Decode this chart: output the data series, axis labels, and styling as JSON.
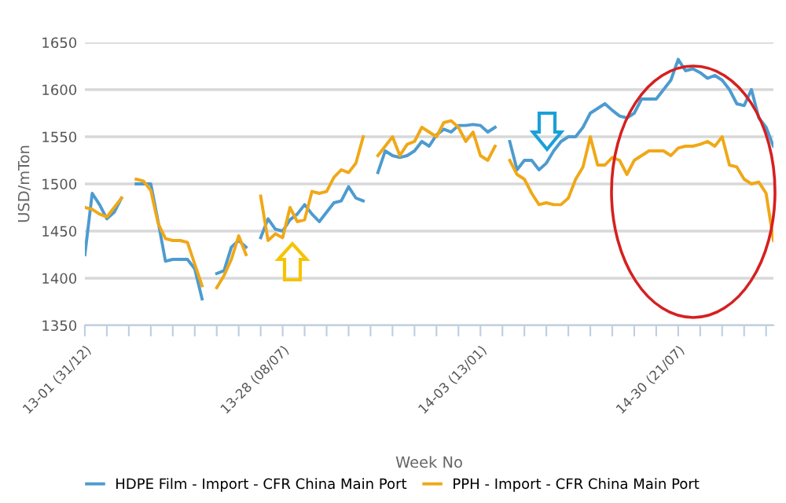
{
  "chart_data": {
    "type": "line",
    "xlabel": "Week No",
    "ylabel": "USD/mTon",
    "categories": [
      "13-01 (31/12)",
      null,
      null,
      null,
      null,
      null,
      null,
      null,
      null,
      null,
      null,
      null,
      null,
      null,
      null,
      null,
      null,
      null,
      null,
      null,
      null,
      null,
      null,
      null,
      null,
      null,
      null,
      "13-28 (08/07)",
      null,
      null,
      null,
      null,
      null,
      null,
      null,
      null,
      null,
      null,
      null,
      null,
      null,
      null,
      null,
      null,
      null,
      null,
      null,
      null,
      null,
      null,
      null,
      null,
      null,
      null,
      "14-03 (13/01)",
      null,
      null,
      null,
      null,
      null,
      null,
      null,
      null,
      null,
      null,
      null,
      null,
      null,
      null,
      null,
      null,
      null,
      null,
      null,
      null,
      null,
      null,
      null,
      null,
      null,
      null,
      "14-30 (21/07)",
      null,
      null,
      null,
      null,
      null,
      null,
      null,
      null,
      null,
      null,
      null,
      null,
      null
    ],
    "series": [
      {
        "name": "HDPE Film - Import - CFR China Main Port",
        "color": "#4d9bd0",
        "values": [
          1425,
          1490,
          1478,
          1463,
          1470,
          1485,
          null,
          1500,
          1500,
          1500,
          1460,
          1418,
          1420,
          1420,
          1420,
          1410,
          1378,
          null,
          1405,
          1408,
          1433,
          1440,
          1433,
          null,
          1443,
          1463,
          1452,
          1450,
          1462,
          1468,
          1478,
          1468,
          1460,
          1470,
          1480,
          1482,
          1497,
          1485,
          1482,
          null,
          1512,
          1535,
          1530,
          1528,
          1530,
          1535,
          1545,
          1540,
          1552,
          1558,
          1555,
          1562,
          1562,
          1563,
          1562,
          1555,
          1560,
          null,
          1545,
          1515,
          1525,
          1525,
          1515,
          1522,
          1535,
          1545,
          1550,
          1550,
          1560,
          1575,
          1580,
          1585,
          1578,
          1572,
          1570,
          1575,
          1590,
          1590,
          1590,
          1600,
          1610,
          1632,
          1620,
          1622,
          1618,
          1612,
          1615,
          1610,
          1600,
          1585,
          1583,
          1600,
          1570,
          1560,
          1540
        ]
      },
      {
        "name": "PPH - Import - CFR China Main Port",
        "color": "#f0a818",
        "values": [
          1475,
          1473,
          1468,
          1465,
          1475,
          1485,
          null,
          1505,
          1503,
          1493,
          1458,
          1442,
          1440,
          1440,
          1438,
          1415,
          1392,
          null,
          1390,
          1403,
          1420,
          1445,
          1425,
          null,
          1487,
          1440,
          1447,
          1443,
          1475,
          1460,
          1462,
          1492,
          1490,
          1492,
          1507,
          1515,
          1512,
          1522,
          1550,
          null,
          1530,
          1540,
          1550,
          1530,
          1542,
          1545,
          1560,
          1555,
          1550,
          1565,
          1567,
          1560,
          1545,
          1555,
          1530,
          1525,
          1540,
          null,
          1525,
          1510,
          1505,
          1490,
          1478,
          1480,
          1478,
          1478,
          1485,
          1505,
          1518,
          1550,
          1520,
          1520,
          1528,
          1525,
          1510,
          1525,
          1530,
          1535,
          1535,
          1535,
          1530,
          1538,
          1540,
          1540,
          1542,
          1545,
          1540,
          1550,
          1520,
          1518,
          1505,
          1500,
          1502,
          1490,
          1440
        ]
      }
    ],
    "ylim": [
      1350,
      1650
    ],
    "yticks": [
      1350,
      1400,
      1450,
      1500,
      1550,
      1600,
      1650
    ],
    "grid": "y",
    "legend": "bottom",
    "marker": "none",
    "line_style": "solid"
  }
}
